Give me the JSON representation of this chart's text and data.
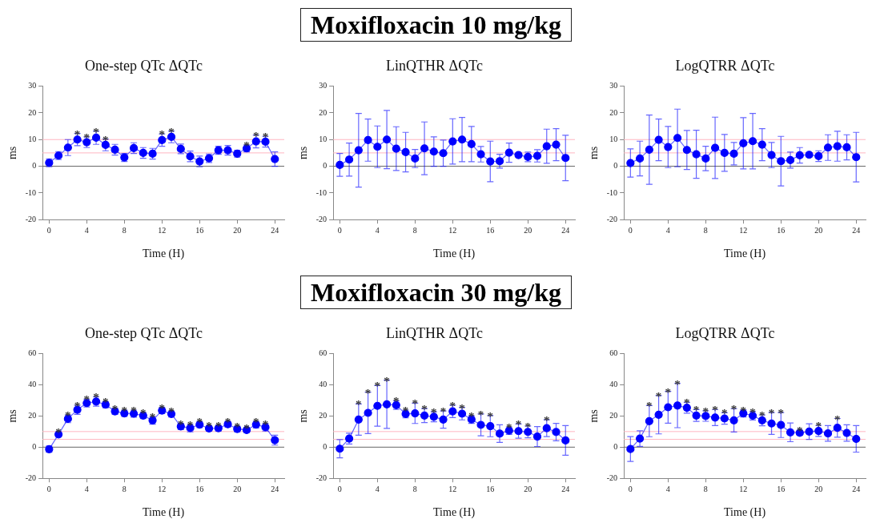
{
  "chart_data": [
    {
      "type": "line",
      "title": "One-step QTc ΔQTc",
      "xlabel": "Time (H)",
      "ylabel": "ms",
      "x": [
        0,
        1,
        2,
        3,
        4,
        5,
        6,
        7,
        8,
        9,
        10,
        11,
        12,
        13,
        14,
        15,
        16,
        17,
        18,
        19,
        20,
        21,
        22,
        23,
        24
      ],
      "xlim": [
        -0.7,
        25
      ],
      "xticks": [
        0,
        4,
        8,
        12,
        16,
        20,
        24
      ],
      "ylim": [
        -20,
        30
      ],
      "yticks": [
        -20,
        -10,
        0,
        10,
        20,
        30
      ],
      "color": "#0000ff",
      "marker": "circle",
      "line_style": "solid",
      "legend": false,
      "values": [
        1.3,
        4,
        7,
        10,
        9,
        10.7,
        8,
        6.2,
        3.3,
        6.8,
        5,
        4.7,
        9.8,
        11,
        6.5,
        3.7,
        1.8,
        3,
        6,
        6,
        4.7,
        6.7,
        9.3,
        9.2,
        2.7
      ],
      "errors": [
        1.5,
        1.5,
        3,
        2.3,
        2,
        2.5,
        2.2,
        2,
        1.5,
        2,
        2,
        2,
        2.3,
        2.2,
        1.8,
        2,
        2,
        1.6,
        1.5,
        1.8,
        1.3,
        1.3,
        2.4,
        2,
        2.7
      ],
      "ref_lines": [
        {
          "axis": "y",
          "value": 0,
          "color": "#666666"
        },
        {
          "axis": "y",
          "value": 5,
          "color": "#ffb6c1"
        },
        {
          "axis": "y",
          "value": 10,
          "color": "#ffb6c1"
        }
      ],
      "annotations": [
        "Moxifloxacin 10 mg/kg",
        {
          "text": "*",
          "x": 3,
          "y": 12.3
        },
        {
          "text": "*",
          "x": 4,
          "y": 11
        },
        {
          "text": "*",
          "x": 5,
          "y": 13.2
        },
        {
          "text": "*",
          "x": 6,
          "y": 10.2
        },
        {
          "text": "*",
          "x": 12,
          "y": 12.1
        },
        {
          "text": "*",
          "x": 13,
          "y": 13.2
        },
        {
          "text": "*",
          "x": 21,
          "y": 8
        },
        {
          "text": "*",
          "x": 22,
          "y": 11.7
        },
        {
          "text": "*",
          "x": 23,
          "y": 11.2
        }
      ]
    },
    {
      "type": "line",
      "title": "LinQTHR ΔQTc",
      "xlabel": "Time (H)",
      "ylabel": "ms",
      "x": [
        0,
        1,
        2,
        3,
        4,
        5,
        6,
        7,
        8,
        9,
        10,
        11,
        12,
        13,
        14,
        15,
        16,
        17,
        18,
        19,
        20,
        21,
        22,
        23,
        24
      ],
      "xlim": [
        -0.7,
        25
      ],
      "xticks": [
        0,
        4,
        8,
        12,
        16,
        20,
        24
      ],
      "ylim": [
        -20,
        30
      ],
      "yticks": [
        -20,
        -10,
        0,
        10,
        20,
        30
      ],
      "color": "#0000ff",
      "marker": "circle",
      "line_style": "solid",
      "legend": false,
      "values": [
        0.5,
        2.5,
        6,
        9.8,
        7.3,
        10,
        6.6,
        5.3,
        2.9,
        6.7,
        5.5,
        4.9,
        9.3,
        10,
        8.3,
        4.5,
        1.8,
        1.9,
        5.1,
        4.2,
        3.5,
        3.9,
        7.5,
        8.1,
        3.1
      ],
      "errors": [
        4.3,
        6.2,
        13.8,
        7.9,
        7.8,
        10.9,
        8.2,
        7.4,
        3.4,
        9.9,
        5.5,
        4.9,
        8.5,
        8.3,
        6.6,
        2.9,
        7.6,
        2.6,
        3.6,
        0.8,
        1.8,
        2.3,
        6.4,
        6,
        8.5
      ],
      "ref_lines": [
        {
          "axis": "y",
          "value": 0,
          "color": "#666666"
        },
        {
          "axis": "y",
          "value": 5,
          "color": "#ffb6c1"
        },
        {
          "axis": "y",
          "value": 10,
          "color": "#ffb6c1"
        }
      ]
    },
    {
      "type": "line",
      "title": "LogQTRR ΔQTc",
      "xlabel": "Time (H)",
      "ylabel": "ms",
      "x": [
        0,
        1,
        2,
        3,
        4,
        5,
        6,
        7,
        8,
        9,
        10,
        11,
        12,
        13,
        14,
        15,
        16,
        17,
        18,
        19,
        20,
        21,
        22,
        23,
        24
      ],
      "xlim": [
        -0.7,
        25
      ],
      "xticks": [
        0,
        4,
        8,
        12,
        16,
        20,
        24
      ],
      "ylim": [
        -20,
        30
      ],
      "yticks": [
        -20,
        -10,
        0,
        10,
        20,
        30
      ],
      "color": "#0000ff",
      "marker": "circle",
      "line_style": "solid",
      "legend": false,
      "values": [
        1.2,
        2.9,
        6.2,
        9.9,
        7.2,
        10.6,
        6.1,
        4.5,
        2.9,
        6.9,
        5,
        4.7,
        8.6,
        9.4,
        8.1,
        4.2,
        1.9,
        2.3,
        4.1,
        4.3,
        3.8,
        7,
        7.5,
        7.1,
        3.4
      ],
      "errors": [
        5.3,
        6.5,
        13,
        7.8,
        7.7,
        10.8,
        7.3,
        9,
        4.6,
        11.5,
        6.9,
        4.2,
        9.6,
        10.4,
        6,
        4.7,
        9.3,
        3,
        2.9,
        0.8,
        2,
        4.8,
        5.6,
        4.7,
        9.3
      ],
      "ref_lines": [
        {
          "axis": "y",
          "value": 0,
          "color": "#666666"
        },
        {
          "axis": "y",
          "value": 5,
          "color": "#ffb6c1"
        },
        {
          "axis": "y",
          "value": 10,
          "color": "#ffb6c1"
        }
      ]
    },
    {
      "type": "line",
      "title": "One-step QTc ΔQTc",
      "xlabel": "Time (H)",
      "ylabel": "ms",
      "x": [
        0,
        1,
        2,
        3,
        4,
        5,
        6,
        7,
        8,
        9,
        10,
        11,
        12,
        13,
        14,
        15,
        16,
        17,
        18,
        19,
        20,
        21,
        22,
        23,
        24
      ],
      "xlim": [
        -0.7,
        25
      ],
      "xticks": [
        0,
        4,
        8,
        12,
        16,
        20,
        24
      ],
      "ylim": [
        -20,
        60
      ],
      "yticks": [
        -20,
        0,
        20,
        40,
        60
      ],
      "color": "#0000ff",
      "marker": "circle",
      "line_style": "solid",
      "legend": false,
      "values": [
        -1.3,
        8.2,
        18.2,
        24,
        28.3,
        29.3,
        27.3,
        23,
        21.7,
        21.5,
        20.3,
        17.2,
        23.5,
        21.3,
        13.3,
        12.3,
        14.5,
        12,
        12.2,
        14.7,
        11.7,
        11,
        14.5,
        12.8,
        4.5
      ],
      "errors": [
        2,
        1.5,
        2.5,
        3,
        2.5,
        3,
        2,
        2,
        2,
        2.3,
        2,
        2.5,
        2,
        2,
        2,
        2.5,
        2,
        1.8,
        1.8,
        1.8,
        1.8,
        1.5,
        2.2,
        2.5,
        3.2
      ],
      "ref_lines": [
        {
          "axis": "y",
          "value": 0,
          "color": "#666666"
        },
        {
          "axis": "y",
          "value": 5,
          "color": "#ffb6c1"
        },
        {
          "axis": "y",
          "value": 10,
          "color": "#ffb6c1"
        }
      ],
      "annotations": [
        "Moxifloxacin 30 mg/kg",
        {
          "text": "*",
          "x": 1,
          "y": 9.7
        },
        {
          "text": "*",
          "x": 2,
          "y": 20.7
        },
        {
          "text": "*",
          "x": 3,
          "y": 27
        },
        {
          "text": "*",
          "x": 4,
          "y": 30.8
        },
        {
          "text": "*",
          "x": 5,
          "y": 32.3
        },
        {
          "text": "*",
          "x": 6,
          "y": 29.3
        },
        {
          "text": "*",
          "x": 7,
          "y": 25
        },
        {
          "text": "*",
          "x": 8,
          "y": 23.7
        },
        {
          "text": "*",
          "x": 9,
          "y": 23.8
        },
        {
          "text": "*",
          "x": 10,
          "y": 22.3
        },
        {
          "text": "*",
          "x": 11,
          "y": 19.7
        },
        {
          "text": "*",
          "x": 12,
          "y": 25.5
        },
        {
          "text": "*",
          "x": 13,
          "y": 23.3
        },
        {
          "text": "*",
          "x": 14,
          "y": 15.3
        },
        {
          "text": "*",
          "x": 15,
          "y": 14.8
        },
        {
          "text": "*",
          "x": 16,
          "y": 16.5
        },
        {
          "text": "*",
          "x": 17,
          "y": 13.8
        },
        {
          "text": "*",
          "x": 18,
          "y": 14
        },
        {
          "text": "*",
          "x": 19,
          "y": 16.5
        },
        {
          "text": "*",
          "x": 20,
          "y": 13.5
        },
        {
          "text": "*",
          "x": 21,
          "y": 12.5
        },
        {
          "text": "*",
          "x": 22,
          "y": 16.7
        },
        {
          "text": "*",
          "x": 23,
          "y": 15.3
        }
      ]
    },
    {
      "type": "line",
      "title": "LinQTHR ΔQTc",
      "xlabel": "Time (H)",
      "ylabel": "ms",
      "x": [
        0,
        1,
        2,
        3,
        4,
        5,
        6,
        7,
        8,
        9,
        10,
        11,
        12,
        13,
        14,
        15,
        16,
        17,
        18,
        19,
        20,
        21,
        22,
        23,
        24
      ],
      "xlim": [
        -0.7,
        25
      ],
      "xticks": [
        0,
        4,
        8,
        12,
        16,
        20,
        24
      ],
      "ylim": [
        -20,
        60
      ],
      "yticks": [
        -20,
        0,
        20,
        40,
        60
      ],
      "color": "#0000ff",
      "marker": "circle",
      "line_style": "solid",
      "legend": false,
      "values": [
        -1,
        5.5,
        17.7,
        22,
        26.5,
        27.5,
        27,
        21.3,
        21.7,
        20.3,
        19.5,
        17.7,
        23,
        21.5,
        17.8,
        14.3,
        13.5,
        8.7,
        10.6,
        10.3,
        9.8,
        6.8,
        12.2,
        9.7,
        4.3
      ],
      "errors": [
        5.8,
        3.5,
        10,
        13.3,
        13,
        15.5,
        2.8,
        2.5,
        6.5,
        4.5,
        3.2,
        5.5,
        4,
        4,
        2.5,
        7,
        6.8,
        5.7,
        2.4,
        4.6,
        3.8,
        6.4,
        5.4,
        5.6,
        9.5
      ],
      "ref_lines": [
        {
          "axis": "y",
          "value": 0,
          "color": "#666666"
        },
        {
          "axis": "y",
          "value": 5,
          "color": "#ffb6c1"
        },
        {
          "axis": "y",
          "value": 10,
          "color": "#ffb6c1"
        }
      ],
      "annotations": [
        {
          "text": "*",
          "x": 2,
          "y": 27.7
        },
        {
          "text": "*",
          "x": 3,
          "y": 35.3
        },
        {
          "text": "*",
          "x": 4,
          "y": 39.5
        },
        {
          "text": "*",
          "x": 5,
          "y": 43
        },
        {
          "text": "*",
          "x": 6,
          "y": 29.8
        },
        {
          "text": "*",
          "x": 7,
          "y": 23.8
        },
        {
          "text": "*",
          "x": 8,
          "y": 28.2
        },
        {
          "text": "*",
          "x": 9,
          "y": 24.8
        },
        {
          "text": "*",
          "x": 10,
          "y": 22.7
        },
        {
          "text": "*",
          "x": 11,
          "y": 23.2
        },
        {
          "text": "*",
          "x": 12,
          "y": 27
        },
        {
          "text": "*",
          "x": 13,
          "y": 25.5
        },
        {
          "text": "*",
          "x": 14,
          "y": 20.3
        },
        {
          "text": "*",
          "x": 15,
          "y": 21.3
        },
        {
          "text": "*",
          "x": 16,
          "y": 20.3
        },
        {
          "text": "*",
          "x": 18,
          "y": 13
        },
        {
          "text": "*",
          "x": 19,
          "y": 14.9
        },
        {
          "text": "*",
          "x": 20,
          "y": 13.6
        },
        {
          "text": "*",
          "x": 22,
          "y": 17.6
        }
      ]
    },
    {
      "type": "line",
      "title": "LogQTRR ΔQTc",
      "xlabel": "Time (H)",
      "ylabel": "ms",
      "x": [
        0,
        1,
        2,
        3,
        4,
        5,
        6,
        7,
        8,
        9,
        10,
        11,
        12,
        13,
        14,
        15,
        16,
        17,
        18,
        19,
        20,
        21,
        22,
        23,
        24
      ],
      "xlim": [
        -0.7,
        25
      ],
      "xticks": [
        0,
        4,
        8,
        12,
        16,
        20,
        24
      ],
      "ylim": [
        -20,
        60
      ],
      "yticks": [
        -20,
        0,
        20,
        40,
        60
      ],
      "color": "#0000ff",
      "marker": "circle",
      "line_style": "solid",
      "legend": false,
      "values": [
        -1.2,
        5.5,
        16.7,
        20.8,
        25.6,
        26.7,
        25.3,
        20.3,
        20,
        19,
        18.4,
        17.2,
        21.7,
        20.2,
        17.2,
        15.2,
        14.2,
        9.5,
        9.2,
        10,
        10.4,
        8.8,
        12.4,
        9.1,
        5.3
      ],
      "errors": [
        8,
        5,
        10,
        12.3,
        10.2,
        14.2,
        3.5,
        3.8,
        3.4,
        5.2,
        3.7,
        7.5,
        2.3,
        2.8,
        3.5,
        7,
        8,
        6,
        1.6,
        5,
        3.5,
        5,
        6,
        5.3,
        8.5
      ],
      "ref_lines": [
        {
          "axis": "y",
          "value": 0,
          "color": "#666666"
        },
        {
          "axis": "y",
          "value": 5,
          "color": "#ffb6c1"
        },
        {
          "axis": "y",
          "value": 10,
          "color": "#ffb6c1"
        }
      ],
      "annotations": [
        {
          "text": "*",
          "x": 2,
          "y": 26.7
        },
        {
          "text": "*",
          "x": 3,
          "y": 33.1
        },
        {
          "text": "*",
          "x": 4,
          "y": 35.8
        },
        {
          "text": "*",
          "x": 5,
          "y": 40.9
        },
        {
          "text": "*",
          "x": 6,
          "y": 28.8
        },
        {
          "text": "*",
          "x": 7,
          "y": 24.1
        },
        {
          "text": "*",
          "x": 8,
          "y": 23.4
        },
        {
          "text": "*",
          "x": 9,
          "y": 24.2
        },
        {
          "text": "*",
          "x": 10,
          "y": 22.1
        },
        {
          "text": "*",
          "x": 11,
          "y": 24.7
        },
        {
          "text": "*",
          "x": 12,
          "y": 24
        },
        {
          "text": "*",
          "x": 13,
          "y": 23
        },
        {
          "text": "*",
          "x": 14,
          "y": 20.7
        },
        {
          "text": "*",
          "x": 15,
          "y": 22.2
        },
        {
          "text": "*",
          "x": 16,
          "y": 22.2
        },
        {
          "text": "*",
          "x": 18,
          "y": 10.8
        },
        {
          "text": "*",
          "x": 20,
          "y": 13.9
        },
        {
          "text": "*",
          "x": 22,
          "y": 18.4
        }
      ]
    }
  ]
}
